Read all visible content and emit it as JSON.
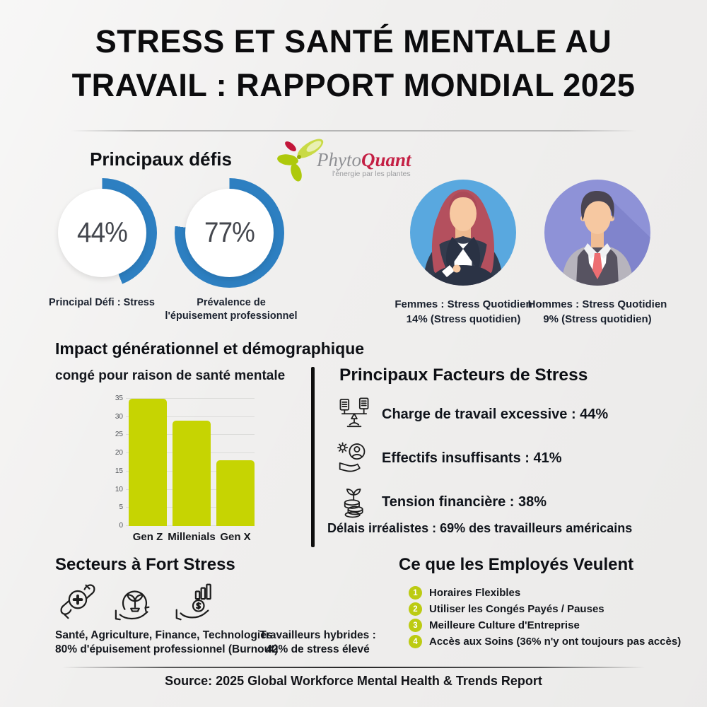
{
  "title": {
    "line1": "STRESS ET SANTÉ MENTALE AU",
    "line2": "TRAVAIL : RAPPORT MONDIAL 2025"
  },
  "logo": {
    "phyto": "Phyto",
    "quant": "Quant",
    "tagline": "l'énergie par les plantes"
  },
  "challenges": {
    "heading": "Principaux défis",
    "accent": "#2d7fc1",
    "donuts": [
      {
        "value": 44,
        "value_label": "44%",
        "caption": "Principal Défi : Stress"
      },
      {
        "value": 77,
        "value_label": "77%",
        "caption": "Prévalence de l'épuisement professionnel"
      }
    ]
  },
  "genders": [
    {
      "line1": "Femmes : Stress Quotidien",
      "line2": "14% (Stress quotidien)",
      "circle_color": "#59a8df"
    },
    {
      "line1": "Hommes : Stress Quotidien",
      "line2": "9% (Stress quotidien)",
      "circle_color": "#8e92d7"
    }
  ],
  "generational": {
    "heading": "Impact générationnel et démographique",
    "subheading": "congé pour raison de santé mentale"
  },
  "chart_data": {
    "type": "bar",
    "categories": [
      "Gen Z",
      "Millenials",
      "Gen X"
    ],
    "values": [
      35,
      29,
      18
    ],
    "title": "congé pour raison de santé mentale",
    "xlabel": "",
    "ylabel": "",
    "ylim": [
      0,
      35
    ],
    "yticks": [
      0,
      5,
      10,
      15,
      20,
      25,
      30,
      35
    ],
    "grid": true,
    "bar_color": "#c6d402"
  },
  "stress_factors": {
    "heading": "Principaux Facteurs de Stress",
    "items": [
      {
        "icon": "workload-scale-icon",
        "label": "Charge de travail excessive : 44%"
      },
      {
        "icon": "understaffed-icon",
        "label": "Effectifs insuffisants : 41%"
      },
      {
        "icon": "financial-strain-icon",
        "label": "Tension financière : 38%"
      }
    ],
    "footnote": "Délais irréalistes : 69% des travailleurs américains"
  },
  "sectors": {
    "heading": "Secteurs à Fort Stress",
    "icons": [
      "health-hands-icon",
      "agriculture-sprout-icon",
      "finance-hand-coin-icon"
    ],
    "line1": "Santé, Agriculture, Finance, Technologies",
    "line2": "80% d'épuisement professionnel (Burnout)",
    "hybrid_line1": "Travailleurs hybrides :",
    "hybrid_line2": "42% de stress élevé"
  },
  "wants": {
    "heading": "Ce que les Employés Veulent",
    "badge_color": "#bccb12",
    "items": [
      {
        "num": "1",
        "label": "Horaires Flexibles"
      },
      {
        "num": "2",
        "label": "Utiliser les Congés Payés / Pauses"
      },
      {
        "num": "3",
        "label": "Meilleure Culture d'Entreprise"
      },
      {
        "num": "4",
        "label": "Accès aux Soins (36% n'y ont toujours pas accès)"
      }
    ]
  },
  "source": {
    "text": "Source: 2025 Global Workforce Mental Health & Trends Report"
  }
}
